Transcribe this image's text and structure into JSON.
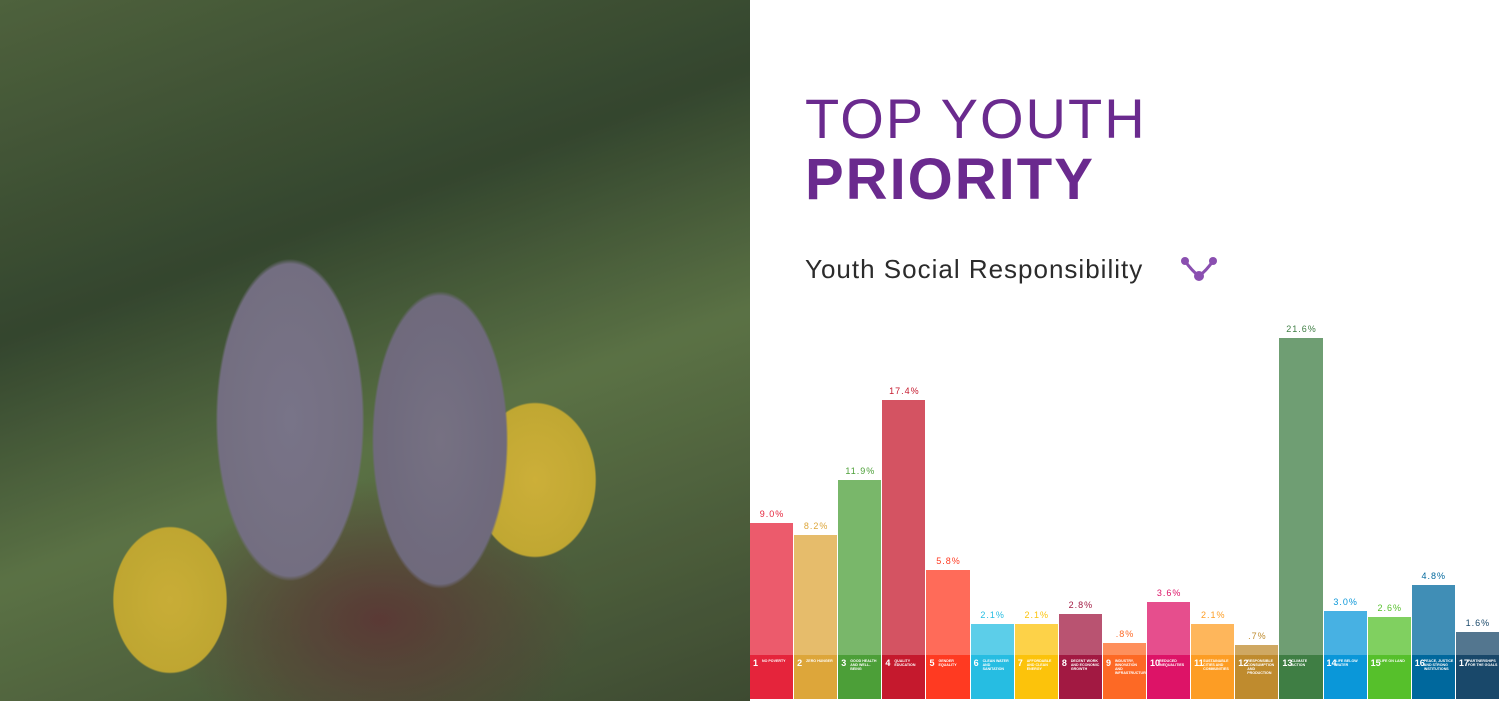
{
  "title_line1": "TOP YOUTH",
  "title_line2": "PRIORITY",
  "subtitle": "Youth Social Responsibility",
  "chart_data": {
    "type": "bar",
    "categories": [
      "NO POVERTY",
      "ZERO HUNGER",
      "GOOD HEALTH AND WELL-BEING",
      "QUALITY EDUCATION",
      "GENDER EQUALITY",
      "CLEAN WATER AND SANITATION",
      "AFFORDABLE AND CLEAN ENERGY",
      "DECENT WORK AND ECONOMIC GROWTH",
      "INDUSTRY, INNOVATION AND INFRASTRUCTURE",
      "REDUCED INEQUALITIES",
      "SUSTAINABLE CITIES AND COMMUNITIES",
      "RESPONSIBLE CONSUMPTION AND PRODUCTION",
      "CLIMATE ACTION",
      "LIFE BELOW WATER",
      "LIFE ON LAND",
      "PEACE, JUSTICE AND STRONG INSTITUTIONS",
      "PARTNERSHIPS FOR THE GOALS"
    ],
    "goal_numbers": [
      "1",
      "2",
      "3",
      "4",
      "5",
      "6",
      "7",
      "8",
      "9",
      "10",
      "11",
      "12",
      "13",
      "14",
      "15",
      "16",
      "17"
    ],
    "values": [
      9.0,
      8.2,
      11.9,
      17.4,
      5.8,
      2.1,
      2.1,
      2.8,
      0.8,
      3.6,
      2.1,
      0.7,
      21.6,
      3.0,
      2.6,
      4.8,
      1.6
    ],
    "value_labels": [
      "9.0%",
      "8.2%",
      "11.9%",
      "17.4%",
      "5.8%",
      "2.1%",
      "2.1%",
      "2.8%",
      ".8%",
      "3.6%",
      "2.1%",
      ".7%",
      "21.6%",
      "3.0%",
      "2.6%",
      "4.8%",
      "1.6%"
    ],
    "colors": [
      "#e5243b",
      "#dda63a",
      "#4c9f38",
      "#c5192d",
      "#ff3a21",
      "#26bde2",
      "#fcc30b",
      "#a21942",
      "#fd6925",
      "#dd1367",
      "#fd9d24",
      "#bf8b2e",
      "#3f7e44",
      "#0a97d9",
      "#56c02b",
      "#00689d",
      "#19486a"
    ]
  }
}
